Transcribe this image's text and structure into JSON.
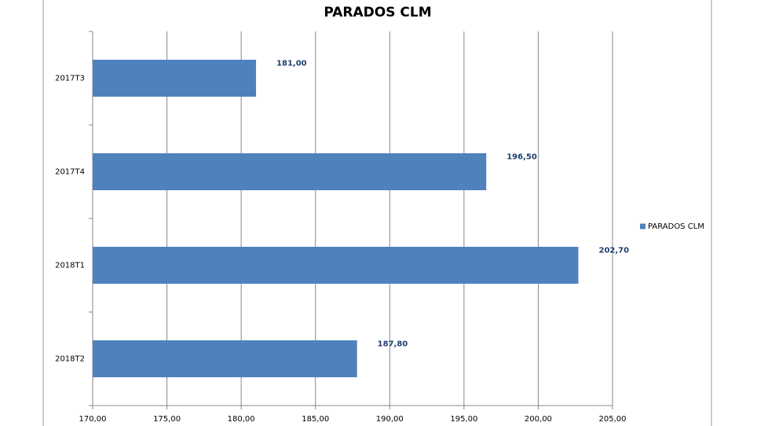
{
  "chart_data": {
    "type": "hbar",
    "title": "PARADOS CLM",
    "categories": [
      "2017T3",
      "2017T4",
      "2018T1",
      "2018T2"
    ],
    "series": [
      {
        "name": "PARADOS CLM",
        "color": "#4f81bd",
        "values": [
          181,
          196.5,
          202.7,
          187.8
        ],
        "value_labels": [
          "181,00",
          "196,50",
          "202,70",
          "187,80"
        ]
      }
    ],
    "xlim": [
      170,
      205
    ],
    "xticks": [
      {
        "value": 170,
        "label": "170,00"
      },
      {
        "value": 175,
        "label": "175,00"
      },
      {
        "value": 180,
        "label": "180,00"
      },
      {
        "value": 185,
        "label": "185,00"
      },
      {
        "value": 190,
        "label": "190,00"
      },
      {
        "value": 195,
        "label": "195,00"
      },
      {
        "value": 200,
        "label": "200,00"
      },
      {
        "value": 205,
        "label": "205,00"
      }
    ],
    "grid": true,
    "legend": "right"
  }
}
